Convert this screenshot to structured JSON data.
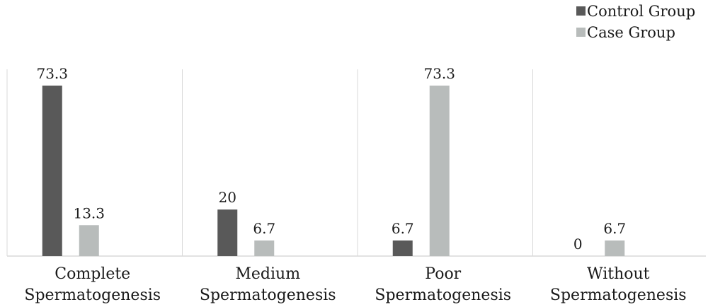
{
  "chart_data": {
    "type": "bar",
    "categories": [
      [
        "Complete",
        "Spermatogenesis"
      ],
      [
        "Medium",
        "Spermatogenesis"
      ],
      [
        "Poor",
        "Spermatogenesis"
      ],
      [
        "Without",
        "Spermatogenesis"
      ]
    ],
    "series": [
      {
        "name": "Control Group",
        "color": "#595959",
        "values": [
          73.3,
          20,
          6.7,
          0
        ],
        "labels": [
          "73.3",
          "20",
          "6.7",
          "0"
        ]
      },
      {
        "name": "Case Group",
        "color": "#b8bcbb",
        "values": [
          13.3,
          6.7,
          73.3,
          6.7
        ],
        "labels": [
          "13.3",
          "6.7",
          "73.3",
          "6.7"
        ]
      }
    ],
    "ylim": [
      0,
      80
    ],
    "grid": "vertical-separators",
    "legend_position": "top-right",
    "axis_color": "#d9d9d9"
  }
}
